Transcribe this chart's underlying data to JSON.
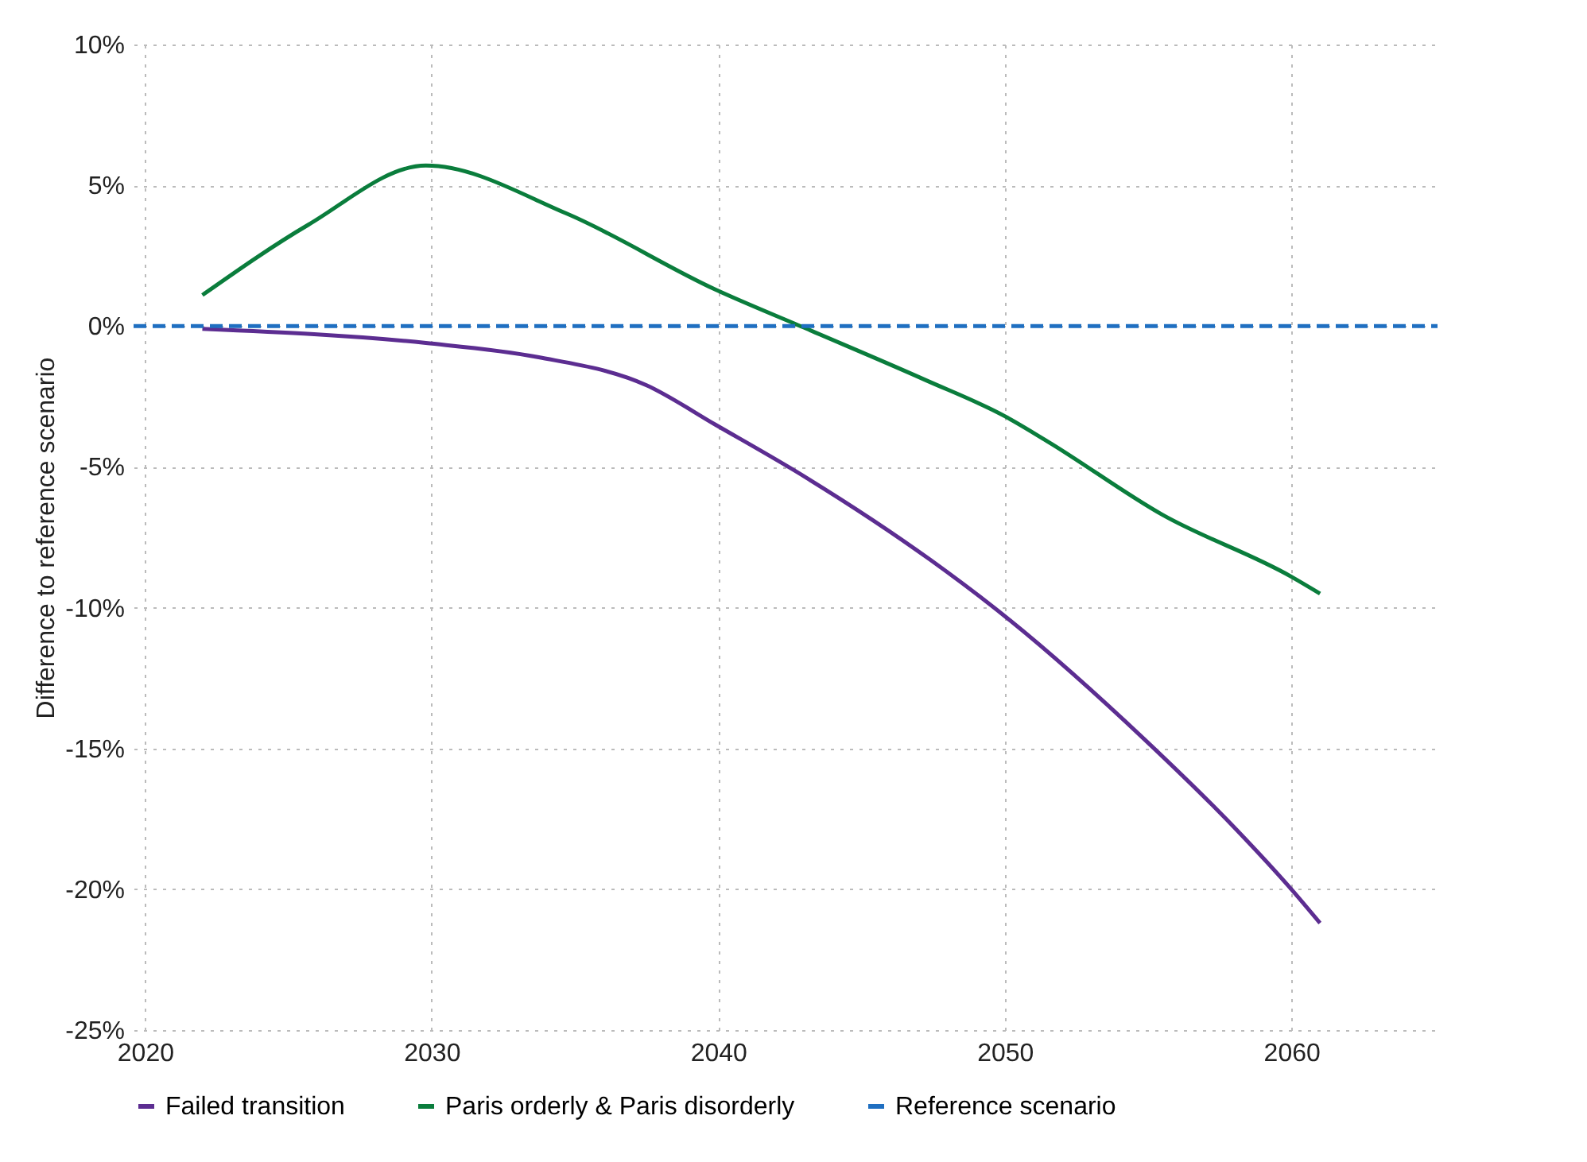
{
  "chart_data": {
    "type": "line",
    "ylabel": "Difference to reference scenario",
    "xlim": [
      2019.6,
      2065.1
    ],
    "xticks": [
      2020,
      2030,
      2040,
      2050,
      2060
    ],
    "ylim": [
      -25,
      10
    ],
    "yticks": [
      {
        "value": -25,
        "label": "-25%"
      },
      {
        "value": -20,
        "label": "-20%"
      },
      {
        "value": -15,
        "label": "-15%"
      },
      {
        "value": -10,
        "label": "-10%"
      },
      {
        "value": -5,
        "label": "-5%"
      },
      {
        "value": 0,
        "label": "0%"
      },
      {
        "value": 5,
        "label": "5%"
      },
      {
        "value": 10,
        "label": "10%"
      }
    ],
    "grid": true,
    "legend": "bottom",
    "series": [
      {
        "name": "Failed transition",
        "color": "#5c2d91",
        "x": [
          2022,
          2029.8,
          2033.7,
          2037.5,
          2039.9,
          2043.1,
          2047.4,
          2050,
          2054.9,
          2058.1,
          2060,
          2061
        ],
        "values": [
          -0.1,
          -0.6,
          -1.1,
          -2.1,
          -3.5,
          -5.4,
          -8.3,
          -10.3,
          -14.7,
          -17.9,
          -20.0,
          -21.2
        ]
      },
      {
        "name": "Paris orderly & Paris disorderly",
        "color": "#0a7d3c",
        "x": [
          2022,
          2025.7,
          2029.8,
          2034.7,
          2039.9,
          2043.1,
          2047.2,
          2050,
          2051.5,
          2055.5,
          2060,
          2061
        ],
        "values": [
          1.1,
          3.6,
          5.7,
          4.0,
          1.3,
          -0.1,
          -1.9,
          -3.2,
          -4.1,
          -6.7,
          -8.9,
          -9.5
        ]
      },
      {
        "name": "Reference scenario",
        "color": "#1f6fc1",
        "line_style": "dashed",
        "x": [
          2019.6,
          2065.1
        ],
        "values": [
          0,
          0
        ]
      }
    ]
  }
}
